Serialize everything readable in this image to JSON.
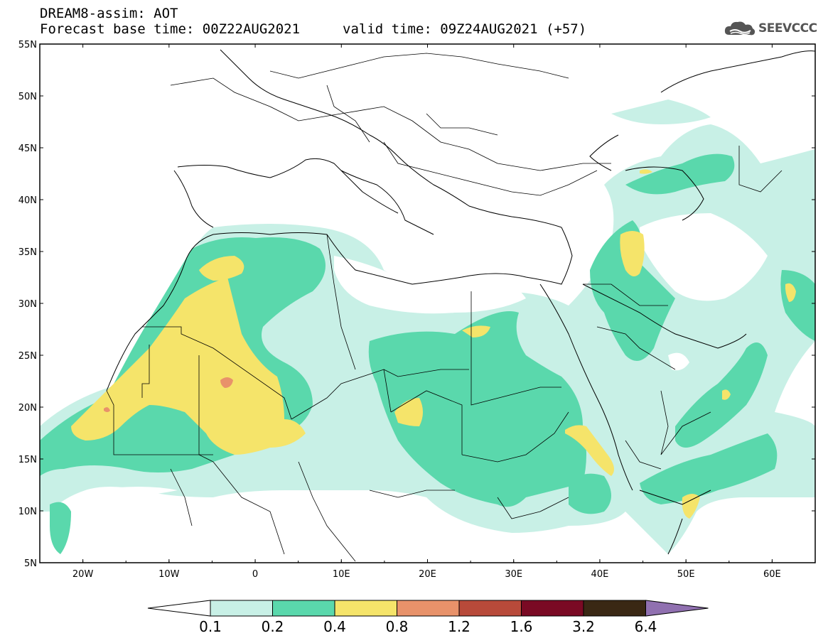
{
  "header": {
    "title": "DREAM8-assim: AOT",
    "base_time": "Forecast base time: 00Z22AUG2021",
    "valid_time": "valid time: 09Z24AUG2021 (+57)",
    "logo_text": "SEEVCCC",
    "logo_icon": "cloud-logo-icon"
  },
  "map": {
    "lat_labels": [
      "55N",
      "50N",
      "45N",
      "40N",
      "35N",
      "30N",
      "25N",
      "20N",
      "15N",
      "10N",
      "5N"
    ],
    "lon_labels": [
      "20W",
      "10W",
      "0",
      "10E",
      "20E",
      "30E",
      "40E",
      "50E",
      "60E"
    ],
    "extent": {
      "lon_min": -25,
      "lon_max": 65,
      "lat_min": 5,
      "lat_max": 55
    }
  },
  "colorbar": {
    "labels": [
      "0.1",
      "0.2",
      "0.4",
      "0.8",
      "1.2",
      "1.6",
      "3.2",
      "6.4"
    ],
    "colors": [
      "#c8f0e6",
      "#5ad8ac",
      "#f5e46a",
      "#e8926a",
      "#b84a3a",
      "#7a0a24",
      "#3a2814",
      "#9070b0"
    ],
    "below_color": "#ffffff"
  },
  "colors": {
    "light_teal": "#c8f0e6",
    "teal": "#5ad8ac",
    "yellow": "#f5e46a",
    "salmon": "#e8926a"
  }
}
